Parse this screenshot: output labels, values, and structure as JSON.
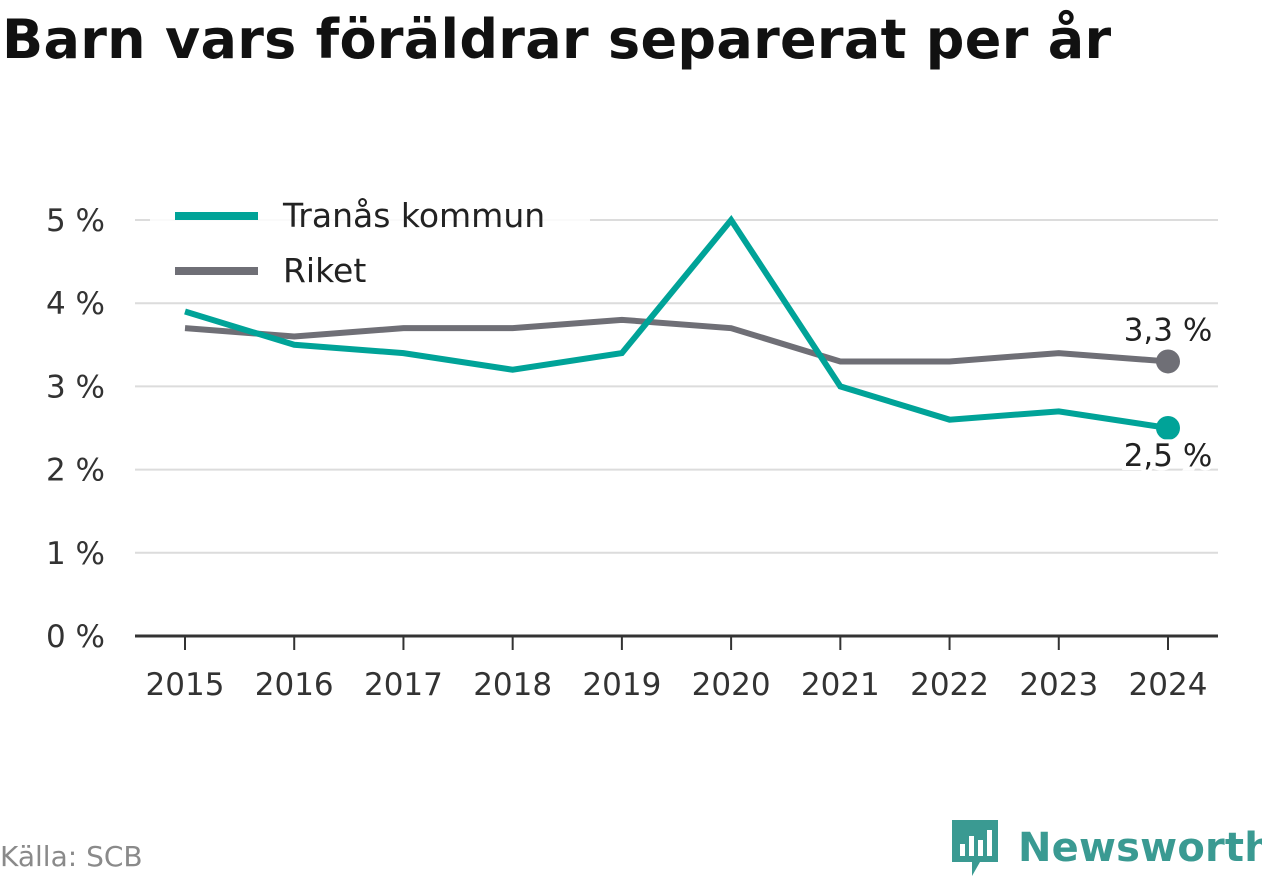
{
  "title": "Barn vars föräldrar separerat per år",
  "source": "Källa: SCB",
  "brand": {
    "name": "Newsworthy",
    "icon": "newsworthy-logo-icon"
  },
  "colors": {
    "primary": "#00a398",
    "secondary": "#6f6f76",
    "grid": "#dcdcdc",
    "axis": "#333333"
  },
  "chart_data": {
    "type": "line",
    "categories": [
      "2015",
      "2016",
      "2017",
      "2018",
      "2019",
      "2020",
      "2021",
      "2022",
      "2023",
      "2024"
    ],
    "series": [
      {
        "name": "Tranås kommun",
        "color": "#00a398",
        "values": [
          3.9,
          3.5,
          3.4,
          3.2,
          3.4,
          5.0,
          3.0,
          2.6,
          2.7,
          2.5
        ],
        "end_label": "2,5 %"
      },
      {
        "name": "Riket",
        "color": "#6f6f76",
        "values": [
          3.7,
          3.6,
          3.7,
          3.7,
          3.8,
          3.7,
          3.3,
          3.3,
          3.4,
          3.3
        ],
        "end_label": "3,3 %"
      }
    ],
    "ylim": [
      0,
      5
    ],
    "yticks": [
      0,
      1,
      2,
      3,
      4,
      5
    ],
    "ytick_labels": [
      "0 %",
      "1 %",
      "2 %",
      "3 %",
      "4 %",
      "5 %"
    ],
    "grid": true,
    "legend_position": "top-left"
  }
}
